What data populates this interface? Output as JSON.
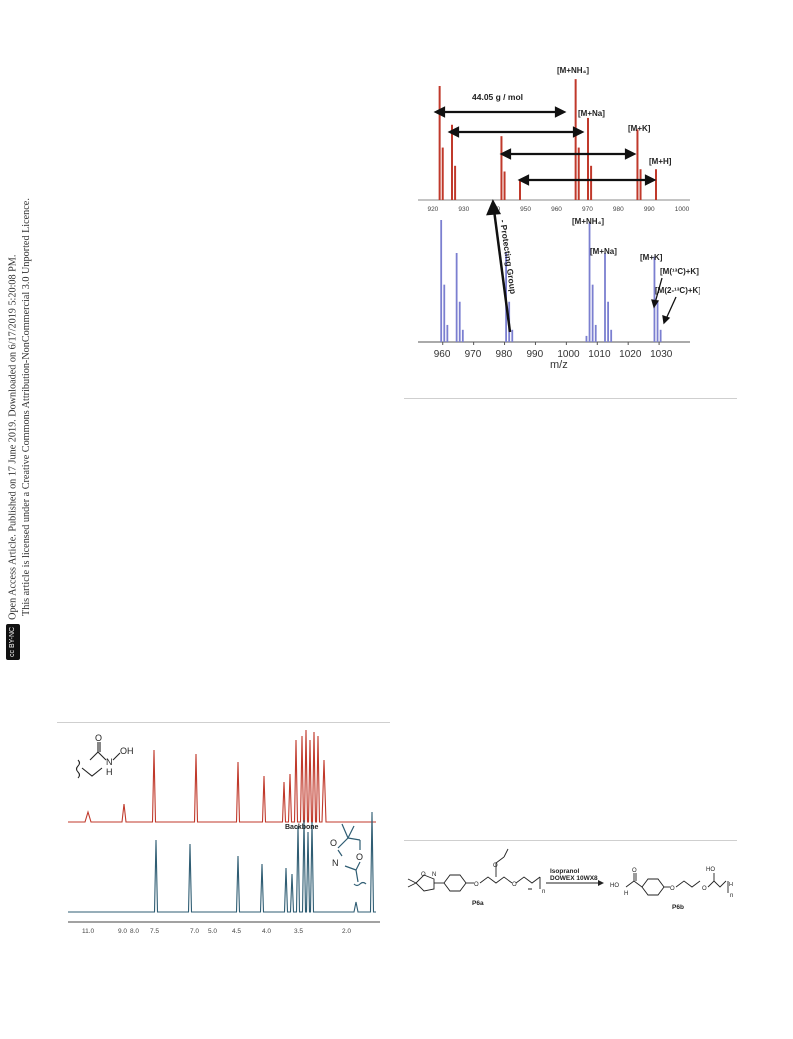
{
  "sidebar": {
    "cc_badge": "cc BY-NC",
    "line1": "Open Access Article. Published on 17 June 2019. Downloaded on 6/17/2019 5:20:08 PM.",
    "line2": "This article is licensed under a Creative Commons Attribution-NonCommercial 3.0 Unported Licence."
  },
  "ms_figure": {
    "top": {
      "color": "#c0392b",
      "x_ticks": [
        "920",
        "930",
        "940",
        "950",
        "960",
        "970",
        "980",
        "990",
        "1000"
      ],
      "annotation_mass": "44.05 g / mol",
      "labels": [
        "[M+NH₄]",
        "[M+Na]",
        "[M+K]",
        "[M+H]"
      ],
      "peaks": [
        {
          "mz": 922,
          "h": 1.0
        },
        {
          "mz": 923,
          "h": 0.46
        },
        {
          "mz": 926,
          "h": 0.66
        },
        {
          "mz": 927,
          "h": 0.3
        },
        {
          "mz": 942,
          "h": 0.56
        },
        {
          "mz": 943,
          "h": 0.25
        },
        {
          "mz": 948,
          "h": 0.17
        },
        {
          "mz": 966,
          "h": 1.06
        },
        {
          "mz": 967,
          "h": 0.46
        },
        {
          "mz": 970,
          "h": 0.72
        },
        {
          "mz": 971,
          "h": 0.3
        },
        {
          "mz": 986,
          "h": 0.62
        },
        {
          "mz": 987,
          "h": 0.27
        },
        {
          "mz": 992,
          "h": 0.27
        }
      ]
    },
    "bottom": {
      "color": "#7b7fd0",
      "x_ticks": [
        "960",
        "970",
        "980",
        "990",
        "1000",
        "1010",
        "1020",
        "1030"
      ],
      "xlabel": "m/z",
      "protecting_label": "- Protecting Group",
      "labels": [
        "[M+NH₄]",
        "[M+Na]",
        "[M+K]",
        "[M(¹³C)+K]",
        "[M(2-¹³C)+K]"
      ],
      "peaks": [
        {
          "mz": 959.5,
          "h": 1.0
        },
        {
          "mz": 960.5,
          "h": 0.47
        },
        {
          "mz": 961.5,
          "h": 0.14
        },
        {
          "mz": 964.5,
          "h": 0.73
        },
        {
          "mz": 965.5,
          "h": 0.33
        },
        {
          "mz": 966.5,
          "h": 0.1
        },
        {
          "mz": 980.5,
          "h": 0.73
        },
        {
          "mz": 981.5,
          "h": 0.33
        },
        {
          "mz": 982.5,
          "h": 0.1
        },
        {
          "mz": 1006.5,
          "h": 0.05
        },
        {
          "mz": 1007.5,
          "h": 0.98
        },
        {
          "mz": 1008.5,
          "h": 0.47
        },
        {
          "mz": 1009.5,
          "h": 0.14
        },
        {
          "mz": 1012.5,
          "h": 0.73
        },
        {
          "mz": 1013.5,
          "h": 0.33
        },
        {
          "mz": 1014.5,
          "h": 0.1
        },
        {
          "mz": 1028.5,
          "h": 0.7
        },
        {
          "mz": 1029.5,
          "h": 0.33
        },
        {
          "mz": 1030.5,
          "h": 0.1
        }
      ]
    }
  },
  "nmr_figure": {
    "top_color": "#c0392b",
    "bottom_color": "#2f5d73",
    "backbone_label": "Backbone",
    "x_ticks": [
      "11.0",
      "9.0",
      "8.0",
      "7.5",
      "7.0",
      "5.0",
      "4.5",
      "4.0",
      "3.5",
      "2.0"
    ],
    "mol_top": {
      "o": "O",
      "nh": "N",
      "h": "H",
      "oh": "OH"
    },
    "mol_bottom": {
      "o1": "O",
      "o2": "O",
      "n": "N"
    }
  },
  "scheme": {
    "reagent1": "Isopranol",
    "reagent2": "DOWEX 10WX8",
    "label_a": "P6a",
    "label_b": "P6b",
    "atoms": {
      "o": "O",
      "n": "N",
      "hn": "HO",
      "h": "H",
      "ho": "HO",
      "sub_n": "n"
    }
  },
  "rules": []
}
